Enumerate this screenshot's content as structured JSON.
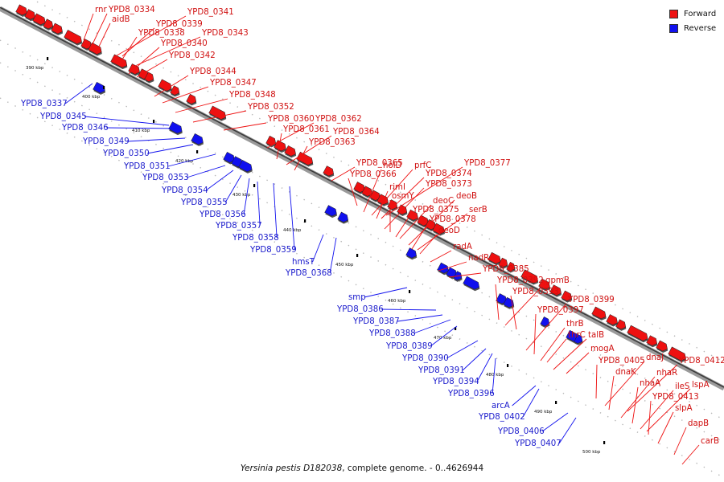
{
  "legend": {
    "forward": {
      "label": "Forward",
      "color": "#ee1111"
    },
    "reverse": {
      "label": "Reverse",
      "color": "#1111ee"
    }
  },
  "caption": {
    "organism": "Yersinia pestis D182038",
    "rest": ", complete genome. - 0..4626944"
  },
  "ticks": [
    "390 kbp",
    "400 kbp",
    "410 kbp",
    "420 kbp",
    "430 kbp",
    "440 kbp",
    "450 kbp",
    "460 kbp",
    "470 kbp",
    "480 kbp",
    "490 kbp",
    "500 kbp"
  ],
  "forward_labels": [
    "rnr",
    "YPD8_0334",
    "aidB",
    "YPD8_0339",
    "YPD8_0341",
    "YPD8_0338",
    "YPD8_0343",
    "YPD8_0340",
    "YPD8_0342",
    "YPD8_0344",
    "YPD8_0347",
    "YPD8_0348",
    "YPD8_0352",
    "YPD8_0360",
    "YPD8_0362",
    "YPD8_0361",
    "YPD8_0364",
    "YPD8_0363",
    "YPD8_0377",
    "YPD8_0365",
    "holD",
    "prfC",
    "YPD8_0374",
    "YPD8_0366",
    "rimI",
    "YPD8_0373",
    "osmY",
    "deoB",
    "deoC",
    "YPD8_0375",
    "serB",
    "YPD8_0378",
    "deoD",
    "radA",
    "nadR",
    "YPD8_0385",
    "YPD8_0392",
    "gpmB",
    "YPD8_0393",
    "YPD8_0399",
    "YPD8_0397",
    "thrB",
    "thrC",
    "talB",
    "mogA",
    "YPD8_0405",
    "dnaJ",
    "YPD8_0412",
    "dnaK",
    "nhaR",
    "nhaA",
    "ileS",
    "lspA",
    "YPD8_0413",
    "slpA",
    "dapB",
    "carB"
  ],
  "reverse_labels": [
    "YPD8_0337",
    "YPD8_0345",
    "YPD8_0346",
    "YPD8_0349",
    "YPD8_0350",
    "YPD8_0351",
    "YPD8_0353",
    "YPD8_0354",
    "YPD8_0355",
    "YPD8_0356",
    "YPD8_0357",
    "YPD8_0358",
    "YPD8_0359",
    "hmsT",
    "YPD8_0368",
    "smp",
    "YPD8_0386",
    "YPD8_0387",
    "YPD8_0388",
    "YPD8_0389",
    "YPD8_0390",
    "YPD8_0391",
    "YPD8_0394",
    "YPD8_0396",
    "arcA",
    "YPD8_0402",
    "YPD8_0406",
    "YPD8_0407"
  ]
}
